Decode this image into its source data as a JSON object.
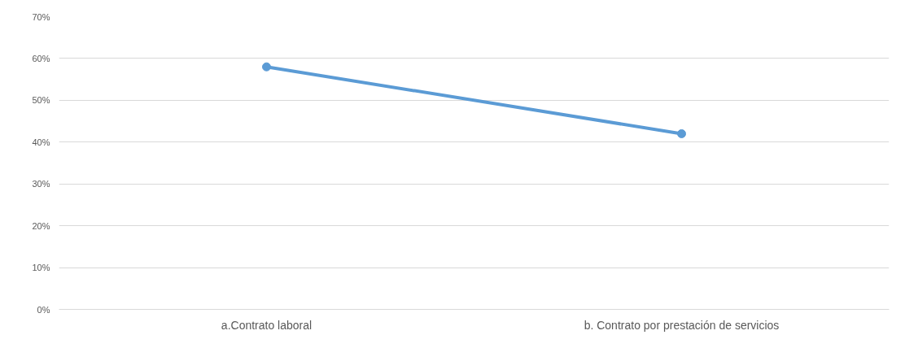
{
  "chart_data": {
    "type": "line",
    "categories": [
      "a.Contrato laboral",
      "b. Contrato por prestación de servicios"
    ],
    "series": [
      {
        "color": "#5b9bd5",
        "values": [
          58,
          42
        ]
      }
    ],
    "ylim": [
      0,
      70
    ],
    "yticks": [
      {
        "value": 0,
        "label": "0%"
      },
      {
        "value": 10,
        "label": "10%"
      },
      {
        "value": 20,
        "label": "20%"
      },
      {
        "value": 30,
        "label": "30%"
      },
      {
        "value": 40,
        "label": "40%"
      },
      {
        "value": 50,
        "label": "50%"
      },
      {
        "value": 60,
        "label": "60%"
      },
      {
        "value": 70,
        "label": "70%"
      }
    ],
    "grid": "y",
    "marker": "circle",
    "line_style": "solid"
  }
}
